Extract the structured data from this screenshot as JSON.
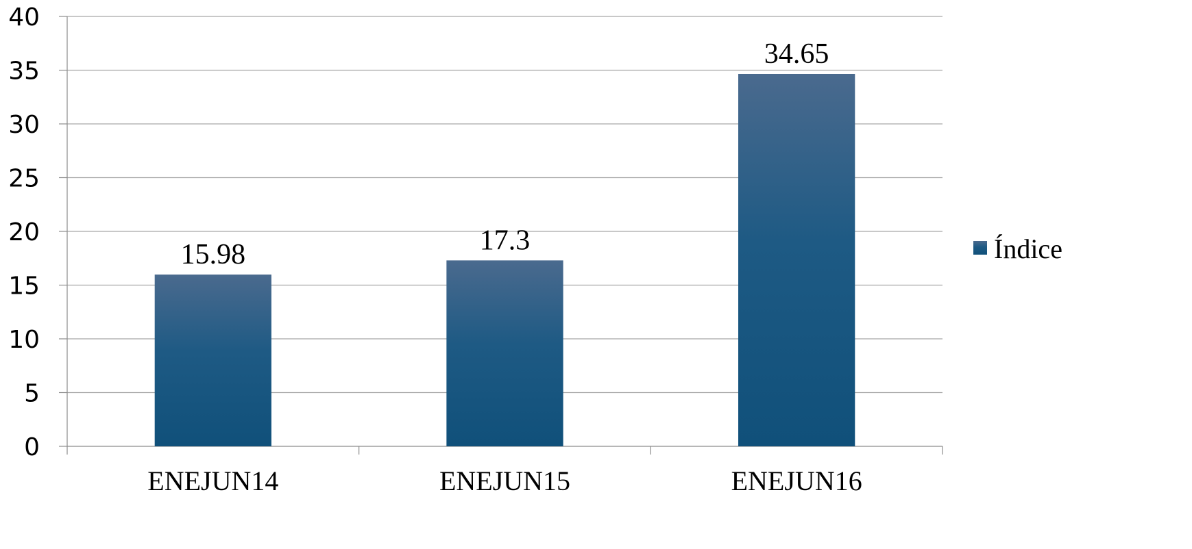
{
  "chart_data": {
    "type": "bar",
    "categories": [
      "ENEJUN14",
      "ENEJUN15",
      "ENEJUN16"
    ],
    "series": [
      {
        "name": "Índice",
        "values": [
          15.98,
          17.3,
          34.65
        ],
        "data_labels": [
          "15.98",
          "17.3",
          "34.65"
        ]
      }
    ],
    "ylim": [
      0,
      40
    ],
    "yticks": [
      0,
      5,
      10,
      15,
      20,
      25,
      30,
      35,
      40
    ],
    "grid": true,
    "legend_position": "right",
    "colors": {
      "bar_top": "#4a6a8e",
      "bar_bottom": "#10507a",
      "grid": "#a6a6a6",
      "axis": "#8c8c8c"
    }
  }
}
